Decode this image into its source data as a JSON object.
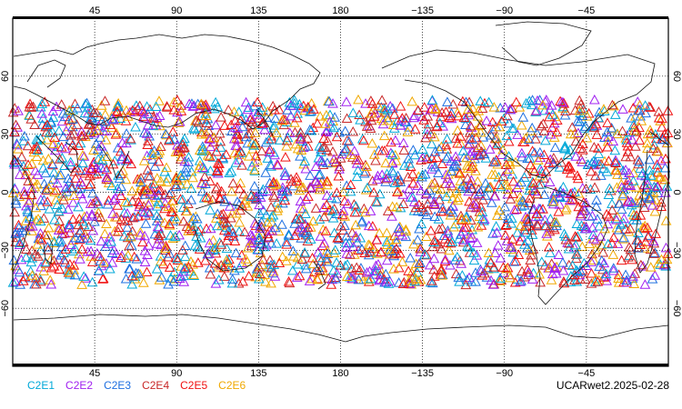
{
  "colors": {
    "frame": "#000000",
    "land_outline": "#111111",
    "grid": "#000000"
  },
  "axes": {
    "top_lon_labels": [
      "45",
      "90",
      "135",
      "180",
      "−135",
      "−90",
      "−45"
    ],
    "bottom_lon_labels": [
      "45",
      "90",
      "135",
      "180",
      "−135",
      "−90",
      "−45"
    ],
    "left_lat_labels": [
      "60",
      "30",
      "0",
      "−30",
      "−60"
    ],
    "right_lat_labels": [
      "60",
      "30",
      "0",
      "−30",
      "−60"
    ],
    "lon_values": [
      45,
      90,
      135,
      180,
      225,
      270,
      315
    ],
    "lat_values": [
      60,
      30,
      0,
      -30,
      -60
    ]
  },
  "map": {
    "lon_range": [
      0,
      360
    ],
    "lat_range": [
      -90,
      90
    ],
    "projection": "cylindrical-equidistant",
    "grid": "dotted"
  },
  "chart_data": {
    "type": "scatter",
    "title": "",
    "marker": "open-triangle",
    "lat_band_of_points": [
      -48,
      48
    ],
    "series": [
      {
        "name": "C2E1",
        "color": "#00a8d8"
      },
      {
        "name": "C2E2",
        "color": "#a020f0"
      },
      {
        "name": "C2E3",
        "color": "#1e6fe0"
      },
      {
        "name": "C2E4",
        "color": "#c82828"
      },
      {
        "name": "C2E5",
        "color": "#f01010"
      },
      {
        "name": "C2E6",
        "color": "#f0a800"
      }
    ]
  },
  "legend": {
    "items": [
      {
        "label": "C2E1",
        "color": "#00a8d8"
      },
      {
        "label": "C2E2",
        "color": "#a020f0"
      },
      {
        "label": "C2E3",
        "color": "#1e6fe0"
      },
      {
        "label": "C2E4",
        "color": "#c82828"
      },
      {
        "label": "C2E5",
        "color": "#f01010"
      },
      {
        "label": "C2E6",
        "color": "#f0a800"
      }
    ]
  },
  "footer": {
    "label": "UCARwet2.2025-02-28"
  }
}
